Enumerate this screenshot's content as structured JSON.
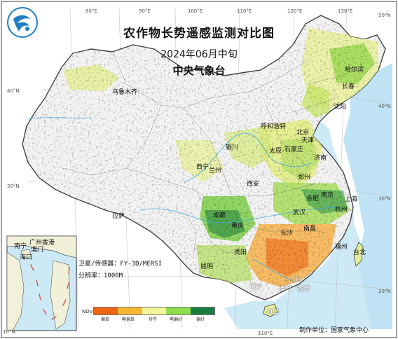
{
  "title": "农作物长势遥感监测对比图",
  "period": "2024年06月中旬",
  "agency": "中央气象台",
  "satellite": "卫星/传感器：FY-3D/MERSI",
  "resolution": "分辨率：1000M",
  "credit": "制作单位：国家气象中心",
  "legend": {
    "ndvi_label": "NDVI",
    "classes": [
      "偏差",
      "略偏差",
      "持平",
      "略偏好",
      "偏好"
    ],
    "colors": [
      "#ee6611",
      "#f6b833",
      "#f3f59a",
      "#8ede4c",
      "#197d3e"
    ]
  },
  "graticule": {
    "lon_labels": [
      "80°E",
      "90°E",
      "100°E",
      "110°E",
      "120°E",
      "130°E",
      "110°E"
    ],
    "lat_labels": [
      "50°N",
      "40°N",
      "40°N",
      "30°N",
      "30°N",
      "20°N",
      "10°N"
    ]
  },
  "cities": {
    "urumqi": "乌鲁木齐",
    "hohhot": "呼和浩特",
    "harbin": "哈尔滨",
    "changchun": "长春",
    "shenyang": "沈阳",
    "beijing": "北京",
    "tianjin": "天津",
    "shijiazhuang": "石家庄",
    "taiyuan": "太原",
    "yinchuan": "银川",
    "jinan": "济南",
    "xining": "西宁",
    "lanzhou": "兰州",
    "zhengzhou": "郑州",
    "xian": "西安",
    "hefei": "合肥",
    "nanjing": "南京",
    "shanghai": "上海",
    "lhasa": "拉萨",
    "chengdu": "成都",
    "wuhan": "武汉",
    "hangzhou": "杭州",
    "chongqing": "重庆",
    "changsha": "长沙",
    "nanchang": "南昌",
    "fuzhou": "福州",
    "taipei": "台北",
    "guiyang": "贵阳",
    "kunming": "昆明",
    "nanning": "南宁",
    "guangzhou": "广州",
    "macau": "澳门",
    "hongkong": "香港",
    "haikou": "海口"
  },
  "inset_cities": {
    "guangzhou": "广州",
    "nanning": "南宁",
    "macau": "澳门",
    "hongkong": "香港",
    "haikou": "海口"
  }
}
